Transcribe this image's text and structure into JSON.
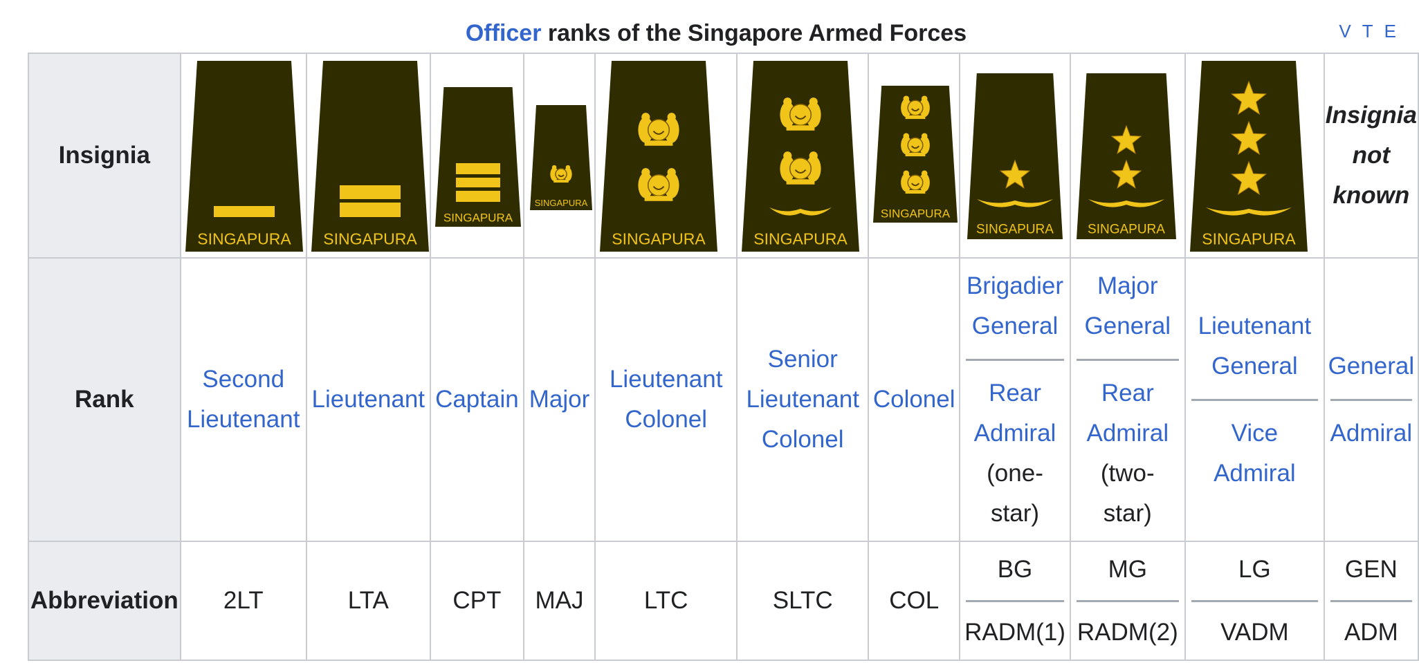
{
  "caption": {
    "link_text": "Officer",
    "title_rest": " ranks of the Singapore Armed Forces",
    "vte": [
      "V",
      "T",
      "E"
    ]
  },
  "row_headers": {
    "insignia": "Insignia",
    "rank": "Rank",
    "abbreviation": "Abbreviation"
  },
  "insignia_text": "SINGAPURA",
  "insignia_unknown": [
    "Insignia",
    "not",
    "known"
  ],
  "colors": {
    "board": "#2f2c00",
    "gold": "#f0c419",
    "link": "#3366cc",
    "header_bg": "#eaecf0"
  },
  "ranks": [
    {
      "rank": [
        "Second Lieutenant"
      ],
      "abbr": [
        "2LT"
      ],
      "insignia": "bar-1"
    },
    {
      "rank": [
        "Lieutenant"
      ],
      "abbr": [
        "LTA"
      ],
      "insignia": "bar-2"
    },
    {
      "rank": [
        "Captain"
      ],
      "abbr": [
        "CPT"
      ],
      "insignia": "bar-3"
    },
    {
      "rank": [
        "Major"
      ],
      "abbr": [
        "MAJ"
      ],
      "insignia": "crest-1"
    },
    {
      "rank": [
        "Lieutenant Colonel"
      ],
      "abbr": [
        "LTC"
      ],
      "insignia": "crest-2"
    },
    {
      "rank": [
        "Senior Lieutenant Colonel"
      ],
      "abbr": [
        "SLTC"
      ],
      "insignia": "crest-2-wreath"
    },
    {
      "rank": [
        "Colonel"
      ],
      "abbr": [
        "COL"
      ],
      "insignia": "crest-3"
    },
    {
      "rank": [
        "Brigadier General",
        "Rear Admiral"
      ],
      "rank_extra": "(one-star)",
      "abbr": [
        "BG",
        "RADM(1)"
      ],
      "insignia": "star-1"
    },
    {
      "rank": [
        "Major General",
        "Rear Admiral"
      ],
      "rank_extra": "(two-star)",
      "abbr": [
        "MG",
        "RADM(2)"
      ],
      "insignia": "star-2"
    },
    {
      "rank": [
        "Lieutenant General",
        "Vice Admiral"
      ],
      "abbr": [
        "LG",
        "VADM"
      ],
      "insignia": "star-3"
    },
    {
      "rank": [
        "General",
        "Admiral"
      ],
      "abbr": [
        "GEN",
        "ADM"
      ],
      "insignia": "unknown"
    }
  ]
}
